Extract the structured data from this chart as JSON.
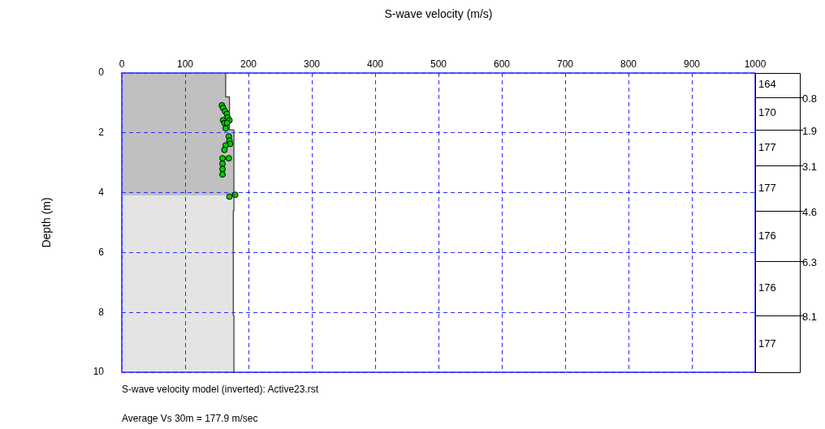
{
  "chart_data": {
    "type": "scatter",
    "xlabel": "S-wave velocity (m/s)",
    "ylabel": "Depth (m)",
    "xlim": [
      0,
      1000
    ],
    "xticks": [
      0,
      100,
      200,
      300,
      400,
      500,
      600,
      700,
      800,
      900,
      1000
    ],
    "ylim": [
      10,
      0
    ],
    "yticks": [
      0,
      2,
      4,
      6,
      8,
      10
    ],
    "grid": true,
    "legend": false,
    "marker": "circle",
    "series": [
      {
        "type": "line",
        "marker": "none",
        "color": "#404040",
        "x": [
          164,
          164,
          170,
          170,
          177,
          177,
          177,
          177,
          176,
          176,
          176,
          176,
          177,
          177
        ],
        "values": [
          0,
          0.8,
          0.8,
          1.9,
          1.9,
          3.1,
          3.1,
          4.6,
          4.6,
          6.3,
          6.3,
          8.1,
          8.1,
          10
        ]
      },
      {
        "color": "#00cc00",
        "x": [
          158,
          160,
          163,
          166,
          167,
          170,
          160,
          162,
          166,
          164,
          169,
          170,
          171,
          164,
          162,
          159,
          169,
          159,
          159,
          159,
          170,
          179
        ],
        "values": [
          1.08,
          1.17,
          1.28,
          1.37,
          1.49,
          1.58,
          1.58,
          1.67,
          1.67,
          1.85,
          2.12,
          2.26,
          2.37,
          2.42,
          2.57,
          2.85,
          2.85,
          3.03,
          3.21,
          3.39,
          4.13,
          4.07
        ]
      }
    ],
    "bands": [
      {
        "axis": "y",
        "from": 0,
        "to": 4.1,
        "color": "#c0c0c0"
      },
      {
        "axis": "y",
        "from": 4.1,
        "to": 10,
        "color": "#e4e4e4"
      }
    ],
    "ref_lines": [
      {
        "axis": "y",
        "value": 0.8,
        "label": "0.8"
      },
      {
        "axis": "y",
        "value": 1.9,
        "label": "1.9"
      },
      {
        "axis": "y",
        "value": 3.1,
        "label": "3.1"
      },
      {
        "axis": "y",
        "value": 4.6,
        "label": "4.6"
      },
      {
        "axis": "y",
        "value": 6.3,
        "label": "6.3"
      },
      {
        "axis": "y",
        "value": 8.1,
        "label": "8.1"
      }
    ],
    "annotations": [
      "164",
      "170",
      "177",
      "177",
      "176",
      "176",
      "177",
      "S-wave velocity model (inverted): Active23.rst",
      "Average Vs 30m = 177.9 m/sec"
    ]
  }
}
